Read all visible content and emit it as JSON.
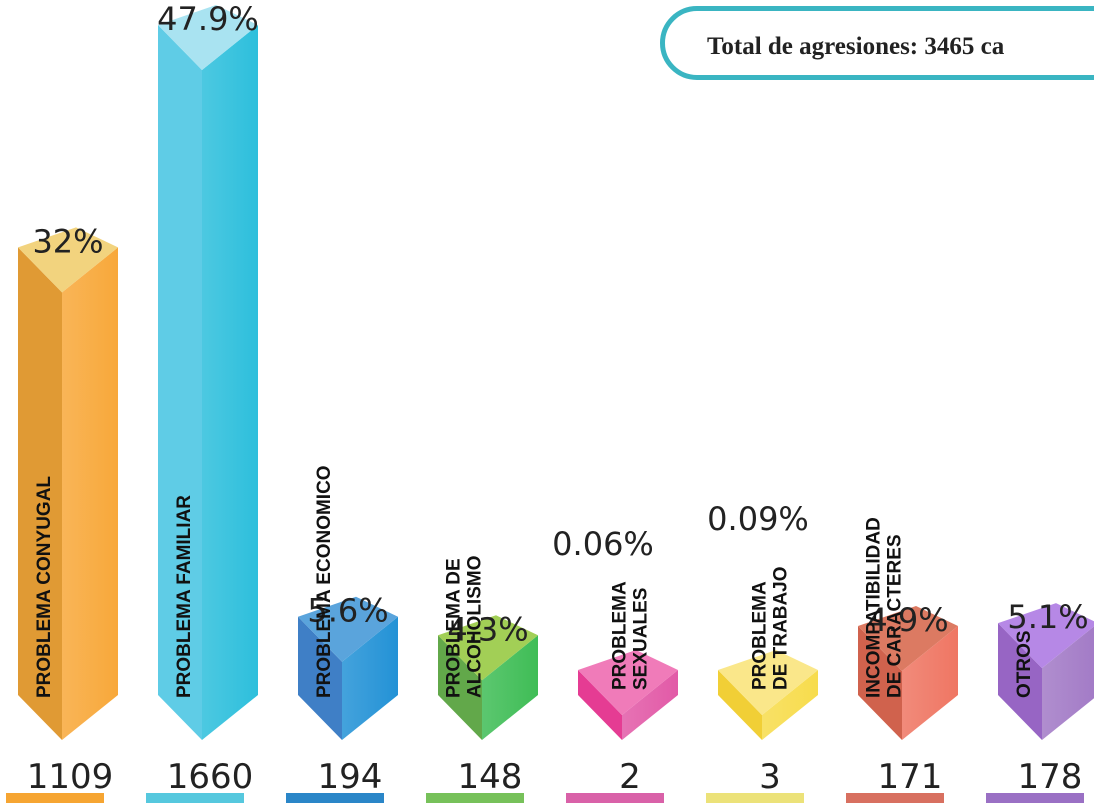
{
  "header": {
    "total_label": "Total de agresiones: 3465 ca"
  },
  "chart_data": {
    "type": "bar",
    "title": "",
    "categories": [
      "PROBLEMA CONYUGAL",
      "PROBLEMA FAMILIAR",
      "PROBLEMA ECONOMICO",
      "PROBLEMA DE ALCOHOLISMO",
      "PROBLEMA SEXUALES",
      "PROBLEMA DE TRABAJO",
      "INCOMPATIBILIDAD DE CARACTERES",
      "OTROS"
    ],
    "values": [
      1109,
      1660,
      194,
      148,
      2,
      3,
      171,
      178
    ],
    "percent_labels": [
      "32%",
      "47.9%",
      "5.6%",
      "4.3%",
      "0.06%",
      "0.09%",
      "4.9%",
      "5.1%"
    ],
    "value_labels": [
      "1109",
      "1660",
      "194",
      "148",
      "2",
      "3",
      "171",
      "178"
    ],
    "bar_label_lines": [
      [
        "PROBLEMA CONYUGAL"
      ],
      [
        "PROBLEMA FAMILIAR"
      ],
      [
        "PROBLEMA ECONOMICO"
      ],
      [
        "PROBLEMA DE",
        "ALCOHOLISMO"
      ],
      [
        "PROBLEMA",
        "SEXUALES"
      ],
      [
        "PROBLEMA",
        "DE TRABAJO"
      ],
      [
        "INCOMPATIBILIDAD",
        "DE CARACTERES"
      ],
      [
        "OTROS"
      ]
    ],
    "colors": [
      {
        "front": "#e09a34",
        "side": "#f8a83a",
        "top": "#f2d37e",
        "underline": "#f6a532"
      },
      {
        "front": "#5fcce6",
        "side": "#2dbfdc",
        "top": "#a9e3f1",
        "underline": "#56c8de"
      },
      {
        "front": "#3f7fc6",
        "side": "#2392d6",
        "top": "#5aa4dc",
        "underline": "#2a86c8"
      },
      {
        "front": "#62a84a",
        "side": "#3fbd56",
        "top": "#a2cf56",
        "underline": "#77c15a"
      },
      {
        "front": "#e53c93",
        "side": "#e25aa7",
        "top": "#f07bb9",
        "underline": "#d961a8"
      },
      {
        "front": "#f1cf36",
        "side": "#f7dc4c",
        "top": "#fae78a",
        "underline": "#ece279"
      },
      {
        "front": "#d0624d",
        "side": "#ef7663",
        "top": "#dc7a62",
        "underline": "#d87060"
      },
      {
        "front": "#9765c4",
        "side": "#a27ac6",
        "top": "#b688e6",
        "underline": "#9a70c4"
      }
    ]
  }
}
